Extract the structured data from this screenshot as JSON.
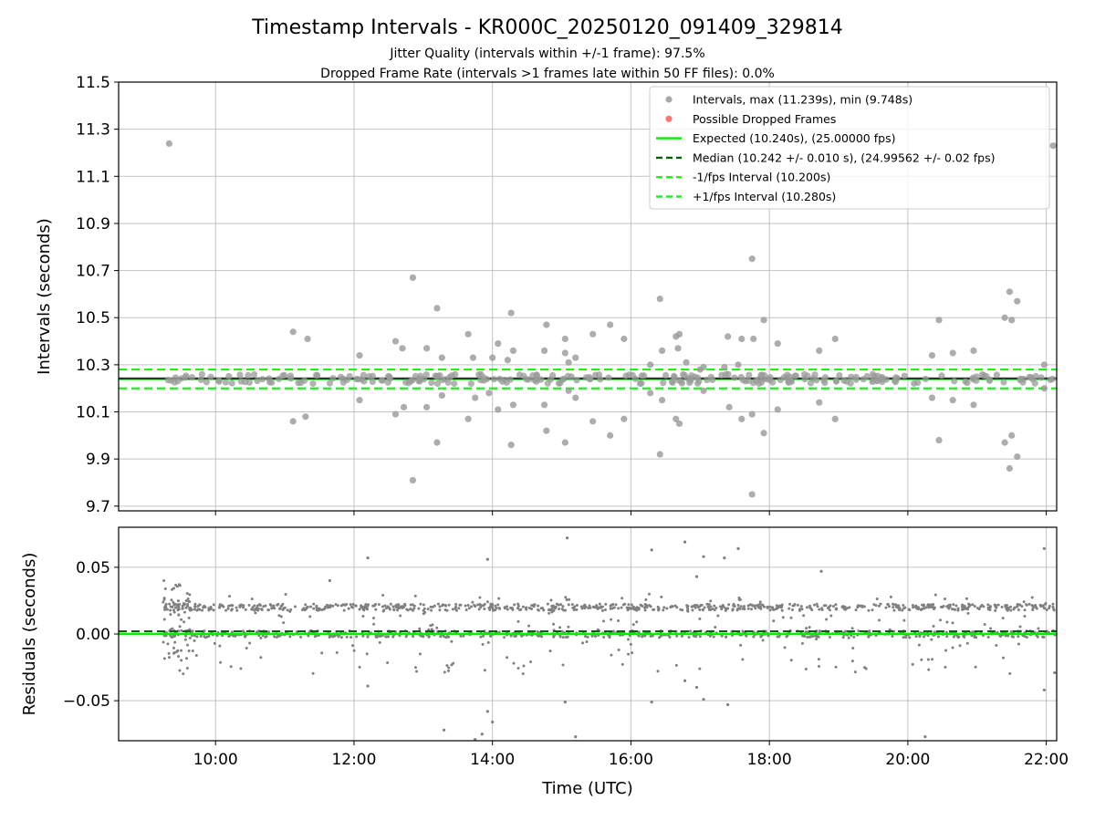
{
  "title": "Timestamp Intervals - KR000C_20250120_091409_329814",
  "subtitle_lines": [
    "Jitter Quality (intervals within +/-1 frame): 97.5%",
    "Dropped Frame Rate (intervals >1 frames late within 50 FF files): 0.0%"
  ],
  "colors": {
    "points": "#808080",
    "dropped": "#ff4d4d",
    "expected": "#00ee00",
    "median": "#006400",
    "bounds": "#22ee22",
    "grid": "#b0b0b0"
  },
  "chart_data": [
    {
      "type": "scatter",
      "panel": "top",
      "xlabel": "",
      "ylabel": "Intervals (seconds)",
      "xlim_hours": [
        8.6,
        22.15
      ],
      "ylim": [
        9.68,
        11.5
      ],
      "yticks": [
        9.7,
        9.9,
        10.1,
        10.3,
        10.5,
        10.7,
        10.9,
        11.1,
        11.3,
        11.5
      ],
      "ytick_labels": [
        "9.7",
        "9.9",
        "10.1",
        "10.3",
        "10.5",
        "10.7",
        "10.9",
        "11.1",
        "11.3",
        "11.5"
      ],
      "xticks_hours": [
        10,
        12,
        14,
        16,
        18,
        20,
        22
      ],
      "grid": true,
      "legend_position": "top-right",
      "legend": [
        {
          "label": "Intervals, max (11.239s), min (9.748s)",
          "kind": "marker",
          "color": "#999999"
        },
        {
          "label": "Possible Dropped Frames",
          "kind": "marker",
          "color": "#ff5a5a"
        },
        {
          "label": "Expected (10.240s), (25.00000 fps)",
          "kind": "line",
          "color": "#00ee00",
          "dash": false
        },
        {
          "label": "Median (10.242 +/- 0.010 s), (24.99562 +/- 0.02 fps)",
          "kind": "line",
          "color": "#006400",
          "dash": true
        },
        {
          "label": "-1/fps Interval (10.200s)",
          "kind": "line",
          "color": "#22ee22",
          "dash": true
        },
        {
          "label": "+1/fps Interval (10.280s)",
          "kind": "line",
          "color": "#22ee22",
          "dash": true
        }
      ],
      "reference_lines": {
        "expected": 10.24,
        "median": 10.242,
        "minus_one_fps": 10.2,
        "plus_one_fps": 10.28
      },
      "time_range_hours": [
        9.24,
        22.15
      ],
      "typical_intervals": [
        10.22,
        10.26
      ],
      "outliers": [
        {
          "x": 9.33,
          "y": 11.239
        },
        {
          "x": 11.12,
          "y": 10.44
        },
        {
          "x": 11.33,
          "y": 10.41
        },
        {
          "x": 11.12,
          "y": 10.06
        },
        {
          "x": 11.3,
          "y": 10.08
        },
        {
          "x": 12.08,
          "y": 10.34
        },
        {
          "x": 12.08,
          "y": 10.15
        },
        {
          "x": 12.6,
          "y": 10.4
        },
        {
          "x": 12.7,
          "y": 10.37
        },
        {
          "x": 12.6,
          "y": 10.09
        },
        {
          "x": 12.72,
          "y": 10.12
        },
        {
          "x": 12.85,
          "y": 10.67
        },
        {
          "x": 12.85,
          "y": 9.81
        },
        {
          "x": 13.05,
          "y": 10.37
        },
        {
          "x": 13.05,
          "y": 10.12
        },
        {
          "x": 13.2,
          "y": 10.54
        },
        {
          "x": 13.27,
          "y": 10.33
        },
        {
          "x": 13.27,
          "y": 10.17
        },
        {
          "x": 13.2,
          "y": 9.97
        },
        {
          "x": 13.65,
          "y": 10.43
        },
        {
          "x": 13.72,
          "y": 10.33
        },
        {
          "x": 13.75,
          "y": 10.16
        },
        {
          "x": 13.65,
          "y": 10.07
        },
        {
          "x": 13.95,
          "y": 10.18
        },
        {
          "x": 14.0,
          "y": 10.33
        },
        {
          "x": 14.08,
          "y": 10.39
        },
        {
          "x": 14.08,
          "y": 10.11
        },
        {
          "x": 14.22,
          "y": 10.32
        },
        {
          "x": 14.3,
          "y": 10.36
        },
        {
          "x": 14.27,
          "y": 10.52
        },
        {
          "x": 14.3,
          "y": 10.13
        },
        {
          "x": 14.27,
          "y": 9.96
        },
        {
          "x": 14.75,
          "y": 10.36
        },
        {
          "x": 14.78,
          "y": 10.47
        },
        {
          "x": 14.75,
          "y": 10.13
        },
        {
          "x": 14.78,
          "y": 10.02
        },
        {
          "x": 15.05,
          "y": 10.41
        },
        {
          "x": 15.05,
          "y": 10.35
        },
        {
          "x": 15.1,
          "y": 10.31
        },
        {
          "x": 15.1,
          "y": 10.19
        },
        {
          "x": 15.2,
          "y": 10.33
        },
        {
          "x": 15.2,
          "y": 10.16
        },
        {
          "x": 15.05,
          "y": 9.97
        },
        {
          "x": 15.45,
          "y": 10.43
        },
        {
          "x": 15.45,
          "y": 10.06
        },
        {
          "x": 15.7,
          "y": 10.47
        },
        {
          "x": 15.7,
          "y": 10.0
        },
        {
          "x": 15.9,
          "y": 10.41
        },
        {
          "x": 15.9,
          "y": 10.07
        },
        {
          "x": 16.28,
          "y": 10.3
        },
        {
          "x": 16.28,
          "y": 10.18
        },
        {
          "x": 16.42,
          "y": 10.58
        },
        {
          "x": 16.45,
          "y": 10.36
        },
        {
          "x": 16.42,
          "y": 9.92
        },
        {
          "x": 16.45,
          "y": 10.15
        },
        {
          "x": 16.65,
          "y": 10.42
        },
        {
          "x": 16.68,
          "y": 10.37
        },
        {
          "x": 16.7,
          "y": 10.43
        },
        {
          "x": 16.65,
          "y": 10.07
        },
        {
          "x": 16.7,
          "y": 10.05
        },
        {
          "x": 16.8,
          "y": 10.31
        },
        {
          "x": 17.0,
          "y": 10.28
        },
        {
          "x": 17.05,
          "y": 10.29
        },
        {
          "x": 17.05,
          "y": 10.19
        },
        {
          "x": 17.35,
          "y": 10.29
        },
        {
          "x": 17.4,
          "y": 10.42
        },
        {
          "x": 17.42,
          "y": 10.12
        },
        {
          "x": 17.55,
          "y": 10.3
        },
        {
          "x": 17.6,
          "y": 10.41
        },
        {
          "x": 17.6,
          "y": 10.07
        },
        {
          "x": 17.75,
          "y": 10.75
        },
        {
          "x": 17.77,
          "y": 10.41
        },
        {
          "x": 17.75,
          "y": 10.09
        },
        {
          "x": 17.75,
          "y": 9.75
        },
        {
          "x": 17.92,
          "y": 10.49
        },
        {
          "x": 17.92,
          "y": 10.01
        },
        {
          "x": 18.12,
          "y": 10.39
        },
        {
          "x": 18.12,
          "y": 10.11
        },
        {
          "x": 18.72,
          "y": 10.36
        },
        {
          "x": 18.72,
          "y": 10.14
        },
        {
          "x": 18.95,
          "y": 10.41
        },
        {
          "x": 18.95,
          "y": 10.07
        },
        {
          "x": 20.35,
          "y": 10.34
        },
        {
          "x": 20.35,
          "y": 10.16
        },
        {
          "x": 20.45,
          "y": 10.49
        },
        {
          "x": 20.45,
          "y": 9.98
        },
        {
          "x": 20.65,
          "y": 10.35
        },
        {
          "x": 20.65,
          "y": 10.15
        },
        {
          "x": 20.95,
          "y": 10.36
        },
        {
          "x": 20.95,
          "y": 10.13
        },
        {
          "x": 21.4,
          "y": 10.5
        },
        {
          "x": 21.4,
          "y": 9.97
        },
        {
          "x": 21.47,
          "y": 10.61
        },
        {
          "x": 21.5,
          "y": 10.49
        },
        {
          "x": 21.47,
          "y": 9.86
        },
        {
          "x": 21.5,
          "y": 10.0
        },
        {
          "x": 21.58,
          "y": 10.57
        },
        {
          "x": 21.58,
          "y": 9.91
        },
        {
          "x": 21.97,
          "y": 10.3
        },
        {
          "x": 21.97,
          "y": 10.2
        },
        {
          "x": 22.1,
          "y": 11.23
        }
      ]
    },
    {
      "type": "scatter",
      "panel": "bottom",
      "xlabel": "Time (UTC)",
      "ylabel": "Residuals (seconds)",
      "xlim_hours": [
        8.6,
        22.15
      ],
      "ylim": [
        -0.08,
        0.08
      ],
      "yticks": [
        -0.05,
        0.0,
        0.05
      ],
      "ytick_labels": [
        "−0.05",
        "0.00",
        "0.05"
      ],
      "xticks_hours": [
        10,
        12,
        14,
        16,
        18,
        20,
        22
      ],
      "xtick_labels": [
        "10:00",
        "12:00",
        "14:00",
        "16:00",
        "18:00",
        "20:00",
        "22:00"
      ],
      "grid": true,
      "reference_lines": {
        "expected": 0.0,
        "median": 0.002
      },
      "time_range_hours": [
        9.24,
        22.15
      ],
      "residual_bands": [
        0.02,
        0.0
      ],
      "outliers": [
        {
          "x": 11.65,
          "y": 0.04
        },
        {
          "x": 12.2,
          "y": 0.057
        },
        {
          "x": 12.2,
          "y": -0.039
        },
        {
          "x": 13.3,
          "y": -0.072
        },
        {
          "x": 13.75,
          "y": -0.079
        },
        {
          "x": 13.85,
          "y": -0.075
        },
        {
          "x": 13.93,
          "y": 0.056
        },
        {
          "x": 13.93,
          "y": -0.058
        },
        {
          "x": 14.0,
          "y": -0.066
        },
        {
          "x": 15.08,
          "y": 0.072
        },
        {
          "x": 15.05,
          "y": -0.051
        },
        {
          "x": 15.2,
          "y": -0.077
        },
        {
          "x": 16.3,
          "y": 0.063
        },
        {
          "x": 16.3,
          "y": -0.051
        },
        {
          "x": 16.78,
          "y": 0.069
        },
        {
          "x": 16.78,
          "y": -0.035
        },
        {
          "x": 16.95,
          "y": 0.043
        },
        {
          "x": 16.95,
          "y": -0.04
        },
        {
          "x": 17.05,
          "y": 0.058
        },
        {
          "x": 17.05,
          "y": -0.049
        },
        {
          "x": 17.35,
          "y": 0.057
        },
        {
          "x": 17.4,
          "y": -0.053
        },
        {
          "x": 17.55,
          "y": 0.064
        },
        {
          "x": 18.75,
          "y": 0.047
        },
        {
          "x": 20.25,
          "y": -0.077
        },
        {
          "x": 21.97,
          "y": 0.064
        },
        {
          "x": 21.97,
          "y": -0.042
        },
        {
          "x": 22.12,
          "y": -0.029
        }
      ]
    }
  ]
}
